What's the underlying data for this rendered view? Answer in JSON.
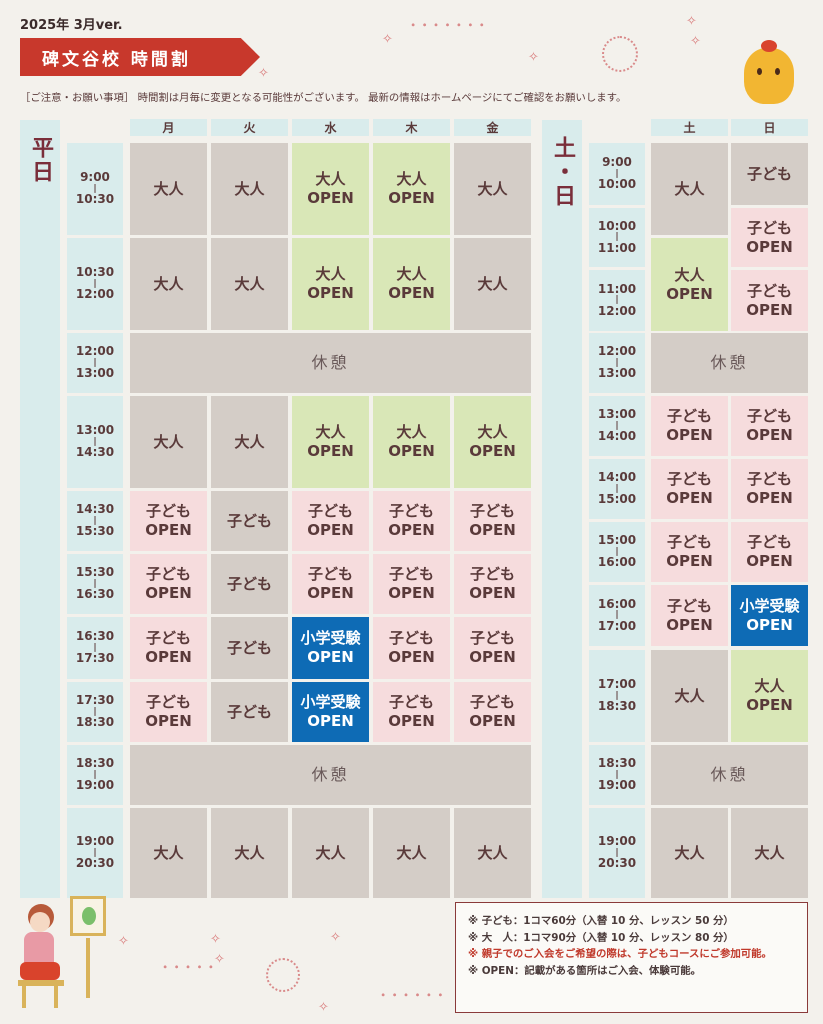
{
  "header": {
    "version": "2025年 3月ver.",
    "title": "碑文谷校 時間割",
    "notice": "［ご注意・お願い事項］ 時間割は月毎に変更となる可能性がございます。 最新の情報はホームページにてご確認をお願いします。"
  },
  "weekday": {
    "label": "平日",
    "days": [
      "月",
      "火",
      "水",
      "木",
      "金"
    ],
    "times": [
      {
        "start": "9:00",
        "end": "10:30"
      },
      {
        "start": "10:30",
        "end": "12:00"
      },
      {
        "start": "12:00",
        "end": "13:00"
      },
      {
        "start": "13:00",
        "end": "14:30"
      },
      {
        "start": "14:30",
        "end": "15:30"
      },
      {
        "start": "15:30",
        "end": "16:30"
      },
      {
        "start": "16:30",
        "end": "17:30"
      },
      {
        "start": "17:30",
        "end": "18:30"
      },
      {
        "start": "18:30",
        "end": "19:00"
      },
      {
        "start": "19:00",
        "end": "20:30"
      }
    ],
    "rows": [
      [
        {
          "lines": [
            "大人"
          ],
          "color": "gray"
        },
        {
          "lines": [
            "大人"
          ],
          "color": "gray"
        },
        {
          "lines": [
            "大人",
            "OPEN"
          ],
          "color": "green"
        },
        {
          "lines": [
            "大人",
            "OPEN"
          ],
          "color": "green"
        },
        {
          "lines": [
            "大人"
          ],
          "color": "gray"
        }
      ],
      [
        {
          "lines": [
            "大人"
          ],
          "color": "gray"
        },
        {
          "lines": [
            "大人"
          ],
          "color": "gray"
        },
        {
          "lines": [
            "大人",
            "OPEN"
          ],
          "color": "green"
        },
        {
          "lines": [
            "大人",
            "OPEN"
          ],
          "color": "green"
        },
        {
          "lines": [
            "大人"
          ],
          "color": "gray"
        }
      ],
      "休憩",
      [
        {
          "lines": [
            "大人"
          ],
          "color": "gray"
        },
        {
          "lines": [
            "大人"
          ],
          "color": "gray"
        },
        {
          "lines": [
            "大人",
            "OPEN"
          ],
          "color": "green"
        },
        {
          "lines": [
            "大人",
            "OPEN"
          ],
          "color": "green"
        },
        {
          "lines": [
            "大人",
            "OPEN"
          ],
          "color": "green"
        }
      ],
      [
        {
          "lines": [
            "子ども",
            "OPEN"
          ],
          "color": "pink"
        },
        {
          "lines": [
            "子ども"
          ],
          "color": "gray"
        },
        {
          "lines": [
            "子ども",
            "OPEN"
          ],
          "color": "pink"
        },
        {
          "lines": [
            "子ども",
            "OPEN"
          ],
          "color": "pink"
        },
        {
          "lines": [
            "子ども",
            "OPEN"
          ],
          "color": "pink"
        }
      ],
      [
        {
          "lines": [
            "子ども",
            "OPEN"
          ],
          "color": "pink"
        },
        {
          "lines": [
            "子ども"
          ],
          "color": "gray"
        },
        {
          "lines": [
            "子ども",
            "OPEN"
          ],
          "color": "pink"
        },
        {
          "lines": [
            "子ども",
            "OPEN"
          ],
          "color": "pink"
        },
        {
          "lines": [
            "子ども",
            "OPEN"
          ],
          "color": "pink"
        }
      ],
      [
        {
          "lines": [
            "子ども",
            "OPEN"
          ],
          "color": "pink"
        },
        {
          "lines": [
            "子ども"
          ],
          "color": "gray"
        },
        {
          "lines": [
            "小学受験",
            "OPEN"
          ],
          "color": "blue"
        },
        {
          "lines": [
            "子ども",
            "OPEN"
          ],
          "color": "pink"
        },
        {
          "lines": [
            "子ども",
            "OPEN"
          ],
          "color": "pink"
        }
      ],
      [
        {
          "lines": [
            "子ども",
            "OPEN"
          ],
          "color": "pink"
        },
        {
          "lines": [
            "子ども"
          ],
          "color": "gray"
        },
        {
          "lines": [
            "小学受験",
            "OPEN"
          ],
          "color": "blue"
        },
        {
          "lines": [
            "子ども",
            "OPEN"
          ],
          "color": "pink"
        },
        {
          "lines": [
            "子ども",
            "OPEN"
          ],
          "color": "pink"
        }
      ],
      "休憩",
      [
        {
          "lines": [
            "大人"
          ],
          "color": "gray"
        },
        {
          "lines": [
            "大人"
          ],
          "color": "gray"
        },
        {
          "lines": [
            "大人"
          ],
          "color": "gray"
        },
        {
          "lines": [
            "大人"
          ],
          "color": "gray"
        },
        {
          "lines": [
            "大人"
          ],
          "color": "gray"
        }
      ]
    ]
  },
  "weekend": {
    "label": "土・日",
    "days": [
      "土",
      "日"
    ],
    "times": [
      {
        "start": "9:00",
        "end": "10:00"
      },
      {
        "start": "10:00",
        "end": "11:00"
      },
      {
        "start": "11:00",
        "end": "12:00"
      },
      {
        "start": "12:00",
        "end": "13:00"
      },
      {
        "start": "13:00",
        "end": "14:00"
      },
      {
        "start": "14:00",
        "end": "15:00"
      },
      {
        "start": "15:00",
        "end": "16:00"
      },
      {
        "start": "16:00",
        "end": "17:00"
      },
      {
        "start": "17:00",
        "end": "18:30"
      },
      {
        "start": "18:30",
        "end": "19:00"
      },
      {
        "start": "19:00",
        "end": "20:30"
      }
    ],
    "sat_blocks": [
      {
        "lines": [
          "大人"
        ],
        "color": "gray"
      },
      {
        "lines": [
          "大人",
          "OPEN"
        ],
        "color": "green"
      },
      "休憩",
      {
        "lines": [
          "子ども",
          "OPEN"
        ],
        "color": "pink"
      },
      {
        "lines": [
          "子ども",
          "OPEN"
        ],
        "color": "pink"
      },
      {
        "lines": [
          "子ども",
          "OPEN"
        ],
        "color": "pink"
      },
      {
        "lines": [
          "子ども",
          "OPEN"
        ],
        "color": "pink"
      },
      {
        "lines": [
          "大人"
        ],
        "color": "gray"
      },
      "休憩",
      {
        "lines": [
          "大人"
        ],
        "color": "gray"
      }
    ],
    "sun_blocks": [
      {
        "lines": [
          "子ども"
        ],
        "color": "gray"
      },
      {
        "lines": [
          "子ども",
          "OPEN"
        ],
        "color": "pink"
      },
      {
        "lines": [
          "子ども",
          "OPEN"
        ],
        "color": "pink"
      },
      "休憩",
      {
        "lines": [
          "子ども",
          "OPEN"
        ],
        "color": "pink"
      },
      {
        "lines": [
          "子ども",
          "OPEN"
        ],
        "color": "pink"
      },
      {
        "lines": [
          "子ども",
          "OPEN"
        ],
        "color": "pink"
      },
      {
        "lines": [
          "小学受験",
          "OPEN"
        ],
        "color": "blue"
      },
      {
        "lines": [
          "大人",
          "OPEN"
        ],
        "color": "green"
      },
      "休憩",
      {
        "lines": [
          "大人"
        ],
        "color": "gray"
      }
    ]
  },
  "legend": {
    "lines": [
      {
        "text": "※ 子ども：1コマ60分（入替 10 分、レッスン 50 分）",
        "red": false
      },
      {
        "text": "※ 大　人：1コマ90分（入替 10 分、レッスン 80 分）",
        "red": false
      },
      {
        "text": "※ 親子でのご入会をご希望の際は、子どもコースにご参加可能。",
        "red": true
      },
      {
        "text": "※ OPEN：記載がある箇所はご入会、体験可能。",
        "red": false
      }
    ]
  },
  "colors": {
    "gray": "#d4cdc7",
    "green": "#d9e7b7",
    "pink": "#f6dcdd",
    "blue": "#0e6bb5",
    "accent": "#c8382c",
    "sidebar": "#d9ecec"
  }
}
